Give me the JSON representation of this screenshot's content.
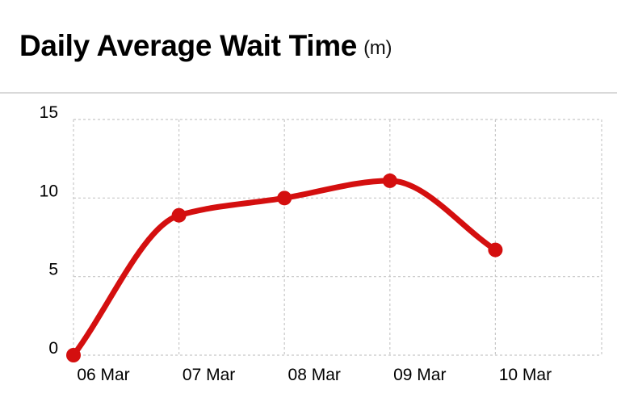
{
  "header": {
    "title": "Daily Average Wait Time",
    "unit": "(m)"
  },
  "chart_data": {
    "type": "line",
    "title": "Daily Average Wait Time",
    "unit": "(m)",
    "xlabel": "",
    "ylabel": "",
    "categories": [
      "06 Mar",
      "07 Mar",
      "08 Mar",
      "09 Mar",
      "10 Mar"
    ],
    "series": [
      {
        "color": "#d40f0f",
        "values": [
          0,
          8.9,
          10,
          11.1,
          6.7
        ]
      }
    ],
    "yticks": [
      0,
      5,
      10,
      15
    ],
    "ylim": [
      0,
      15
    ],
    "grid": true,
    "smooth": true,
    "legend": "none"
  }
}
